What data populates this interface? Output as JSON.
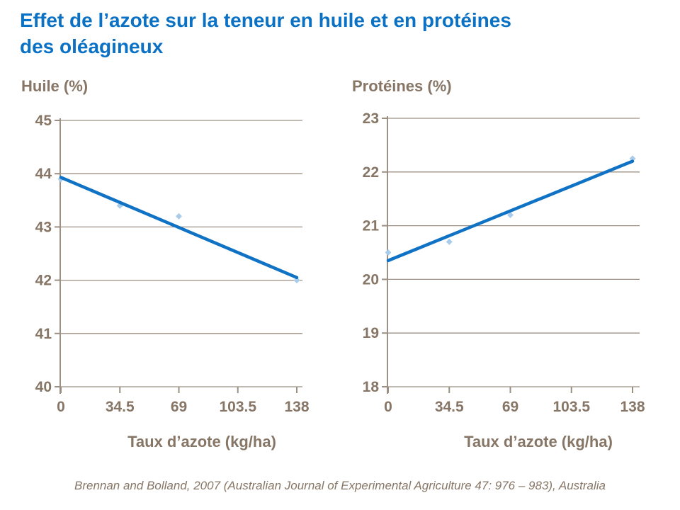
{
  "header": {
    "title_lines": [
      "Effet de l’azote sur la teneur en huile et en protéines",
      "des oléagineux"
    ]
  },
  "footer": {
    "source": "Brennan and Bolland, 2007 (Australian Journal of Experimental Agriculture 47: 976 – 983), Australia"
  },
  "colors": {
    "title_blue": "#0a71c5",
    "trend_line_blue": "#0f72c4",
    "marker_light_blue": "#a9ccea",
    "axis_text_taupe": "#877666",
    "gridline_taupe": "#9b9083",
    "background": "#ffffff"
  },
  "chart_data": [
    {
      "type": "scatter",
      "title": "Huile (%)",
      "xlabel": "Taux d’azote (kg/ha)",
      "ylabel": "Huile (%)",
      "x": [
        0,
        34.5,
        69,
        138
      ],
      "y": [
        43.9,
        43.4,
        43.2,
        42.0
      ],
      "trend_line": {
        "x": [
          0,
          138
        ],
        "y": [
          43.93,
          42.05
        ]
      },
      "x_ticks": [
        0,
        34.5,
        69,
        103.5,
        138
      ],
      "x_tick_labels": [
        "0",
        "34.5",
        "69",
        "103.5",
        "138"
      ],
      "y_ticks": [
        45,
        44,
        43,
        42,
        41,
        40
      ],
      "y_tick_labels": [
        "45",
        "44",
        "43",
        "42",
        "41",
        "40"
      ],
      "xlim": [
        0,
        138
      ],
      "ylim": [
        40,
        45
      ],
      "grid": "horizontal",
      "legend": "none",
      "marker": "diamond"
    },
    {
      "type": "scatter",
      "title": "Protéines (%)",
      "xlabel": "Taux d’azote (kg/ha)",
      "ylabel": "Protéines (%)",
      "x": [
        0,
        34.5,
        69,
        138
      ],
      "y": [
        20.5,
        20.7,
        21.2,
        22.25
      ],
      "trend_line": {
        "x": [
          0,
          138
        ],
        "y": [
          20.35,
          22.2
        ]
      },
      "x_ticks": [
        0,
        34.5,
        69,
        103.5,
        138
      ],
      "x_tick_labels": [
        "0",
        "34.5",
        "69",
        "103.5",
        "138"
      ],
      "y_ticks": [
        23,
        22,
        21,
        20,
        19,
        18
      ],
      "y_tick_labels": [
        "23",
        "22",
        "21",
        "20",
        "19",
        "18"
      ],
      "xlim": [
        0,
        138
      ],
      "ylim": [
        18,
        23
      ],
      "grid": "horizontal",
      "legend": "none",
      "marker": "diamond"
    }
  ]
}
